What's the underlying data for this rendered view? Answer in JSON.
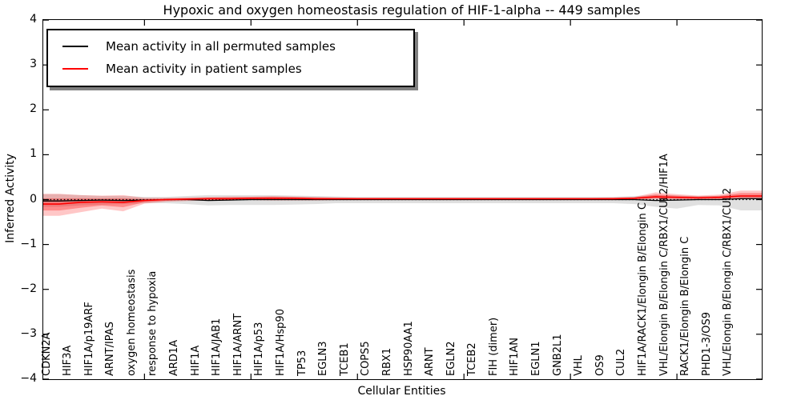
{
  "title": "Hypoxic and oxygen homeostasis regulation of HIF-1-alpha -- 449 samples",
  "axes": {
    "ylabel": "Inferred Activity",
    "xlabel": "Cellular Entities",
    "yticks": [
      {
        "label": "4",
        "value": 4
      },
      {
        "label": "3",
        "value": 3
      },
      {
        "label": "2",
        "value": 2
      },
      {
        "label": "1",
        "value": 1
      },
      {
        "label": "0",
        "value": 0
      },
      {
        "label": "−1",
        "value": -1
      },
      {
        "label": "−2",
        "value": -2
      },
      {
        "label": "−3",
        "value": -3
      },
      {
        "label": "−4",
        "value": -4
      }
    ],
    "xtick_category_indices": [
      4,
      9,
      14,
      19,
      24,
      29
    ]
  },
  "legend": {
    "items": [
      {
        "label": "Mean activity in all permuted samples",
        "color": "#000000"
      },
      {
        "label": "Mean activity in patient samples",
        "color": "#ff0000"
      }
    ]
  },
  "chart_data": {
    "type": "line",
    "title": "Hypoxic and oxygen homeostasis regulation of HIF-1-alpha -- 449 samples",
    "xlabel": "Cellular Entities",
    "ylabel": "Inferred Activity",
    "ylim": [
      -4,
      4
    ],
    "grid": false,
    "legend_position": "upper left",
    "zero_reference_line": {
      "y": 0,
      "style": "dotted",
      "color": "#000000"
    },
    "categories": [
      "CDKN2A",
      "HIF3A",
      "HIF1A/p19ARF",
      "ARNT/IPAS",
      "oxygen homeostasis",
      "response to hypoxia",
      "ARD1A",
      "HIF1A",
      "HIF1A/JAB1",
      "HIF1A/ARNT",
      "HIF1A/p53",
      "HIF1A/Hsp90",
      "TP53",
      "EGLN3",
      "TCEB1",
      "COPS5",
      "RBX1",
      "HSP90AA1",
      "ARNT",
      "EGLN2",
      "TCEB2",
      "FIH (dimer)",
      "HIF1AN",
      "EGLN1",
      "GNB2L1",
      "VHL",
      "OS9",
      "CUL2",
      "HIF1A/RACK1/Elongin B/Elongin C",
      "VHL/Elongin B/Elongin C/RBX1/CUL2/HIF1A",
      "RACK1/Elongin B/Elongin C",
      "PHD1-3/OS9",
      "VHL/Elongin B/Elongin C/RBX1/CUL2"
    ],
    "series": [
      {
        "name": "Mean activity in all permuted samples",
        "color": "#000000",
        "values": [
          -0.03,
          -0.02,
          -0.01,
          -0.02,
          -0.01,
          0.0,
          0.0,
          -0.02,
          -0.01,
          0.0,
          0.0,
          0.0,
          0.0,
          0.0,
          0.0,
          0.0,
          0.0,
          0.0,
          0.0,
          0.0,
          0.0,
          0.0,
          0.0,
          0.0,
          0.0,
          0.0,
          0.0,
          0.0,
          -0.02,
          -0.01,
          0.0,
          0.0,
          0.02
        ]
      },
      {
        "name": "Mean activity in patient samples",
        "color": "#ff0000",
        "values": [
          -0.1,
          -0.06,
          -0.05,
          -0.06,
          -0.02,
          0.0,
          0.01,
          0.02,
          0.02,
          0.03,
          0.03,
          0.03,
          0.02,
          0.02,
          0.02,
          0.02,
          0.02,
          0.02,
          0.02,
          0.02,
          0.02,
          0.02,
          0.02,
          0.02,
          0.02,
          0.02,
          0.02,
          0.03,
          0.06,
          0.05,
          0.04,
          0.05,
          0.08
        ]
      }
    ],
    "bands": [
      {
        "name": "permuted-samples-range",
        "color": "#000000",
        "opacity": 0.12,
        "upper": [
          0.12,
          0.1,
          0.08,
          0.08,
          0.06,
          0.06,
          0.08,
          0.1,
          0.1,
          0.1,
          0.1,
          0.09,
          0.08,
          0.07,
          0.06,
          0.06,
          0.06,
          0.06,
          0.06,
          0.06,
          0.06,
          0.06,
          0.06,
          0.06,
          0.06,
          0.06,
          0.06,
          0.08,
          0.1,
          0.09,
          0.08,
          0.08,
          0.1
        ],
        "lower": [
          -0.16,
          -0.13,
          -0.11,
          -0.1,
          -0.08,
          -0.08,
          -0.1,
          -0.13,
          -0.12,
          -0.12,
          -0.12,
          -0.11,
          -0.1,
          -0.08,
          -0.08,
          -0.08,
          -0.08,
          -0.08,
          -0.08,
          -0.08,
          -0.08,
          -0.08,
          -0.08,
          -0.08,
          -0.08,
          -0.08,
          -0.08,
          -0.1,
          -0.16,
          -0.2,
          -0.12,
          -0.13,
          -0.24
        ]
      },
      {
        "name": "patient-samples-range",
        "color": "#ff0000",
        "opacity": 0.22,
        "upper": [
          0.13,
          0.1,
          0.09,
          0.1,
          0.04,
          0.04,
          0.05,
          0.06,
          0.07,
          0.07,
          0.08,
          0.07,
          0.06,
          0.05,
          0.04,
          0.04,
          0.04,
          0.04,
          0.04,
          0.04,
          0.04,
          0.04,
          0.04,
          0.04,
          0.04,
          0.04,
          0.05,
          0.06,
          0.16,
          0.12,
          0.09,
          0.11,
          0.2
        ],
        "lower": [
          -0.36,
          -0.28,
          -0.2,
          -0.26,
          -0.09,
          -0.05,
          -0.03,
          -0.02,
          -0.01,
          -0.01,
          -0.02,
          -0.02,
          -0.02,
          -0.01,
          -0.01,
          -0.01,
          -0.01,
          -0.01,
          -0.01,
          -0.01,
          -0.01,
          -0.01,
          -0.01,
          -0.01,
          -0.01,
          -0.01,
          -0.01,
          -0.01,
          0.01,
          0.0,
          0.0,
          0.0,
          0.01
        ]
      }
    ]
  }
}
